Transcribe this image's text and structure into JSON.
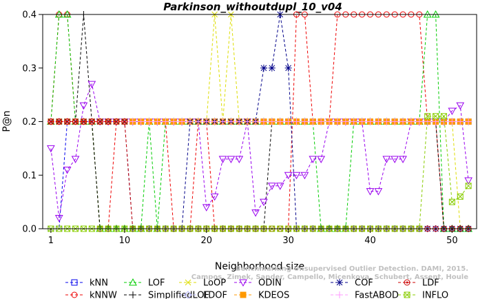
{
  "chart_data": {
    "type": "line",
    "title": "Parkinson_withoutdupl_10_v04",
    "xlabel": "Neighborhood size",
    "ylabel": "P@n",
    "xlim": [
      0,
      53
    ],
    "ylim": [
      0,
      0.4
    ],
    "xticks": [
      "1",
      "10",
      "20",
      "30",
      "40",
      "50"
    ],
    "yticks": [
      "0.0",
      "0.1",
      "0.2",
      "0.3",
      "0.4"
    ],
    "grid": false,
    "legend_position": "bottom",
    "watermark": [
      "Benchmarking Unsupervised Outlier Detection. DAMI, 2015.",
      "Campos, Zimek, Sander, Campello, Micenkova, Schubert, Assent, Houle"
    ],
    "series": [
      {
        "name": "kNN",
        "color": "#0000ee",
        "marker": "square",
        "values": [
          0,
          0,
          0.2,
          0.2,
          0.2,
          0.2,
          0.2,
          0.2,
          0.2,
          0.2,
          0.2,
          0.2,
          0.2,
          0.2,
          0.2,
          0.2,
          0.2,
          0.2,
          0.2,
          0.2,
          0.2,
          0.2,
          0.2,
          0.2,
          0.2,
          0.2,
          0.2,
          0.2,
          0.2,
          0.2,
          0.2,
          0.2,
          0.2,
          0.2,
          0.2,
          0.2,
          0.2,
          0.2,
          0.2,
          0.2,
          0.2,
          0.2,
          0.2,
          0.2,
          0.2,
          0.2,
          0.2,
          0.2,
          0.2,
          0.2,
          0.2,
          0.2
        ]
      },
      {
        "name": "kNNW",
        "color": "#ee0000",
        "marker": "circle",
        "values": [
          0.2,
          0.4,
          0.4,
          0.2,
          0.2,
          0.2,
          0,
          0,
          0.2,
          0.2,
          0.2,
          0.2,
          0.2,
          0.2,
          0.2,
          0,
          0,
          0,
          0.2,
          0.2,
          0,
          0,
          0,
          0,
          0,
          0,
          0,
          0,
          0,
          0,
          0.4,
          0.4,
          0.2,
          0.2,
          0.2,
          0.4,
          0.4,
          0.4,
          0.4,
          0.4,
          0.4,
          0.4,
          0.4,
          0.4,
          0.4,
          0.4,
          0.2,
          0.2,
          0,
          0,
          0,
          0
        ]
      },
      {
        "name": "LOF",
        "color": "#00cc00",
        "marker": "triangle-up",
        "values": [
          0.2,
          0.4,
          0.4,
          0.2,
          0.2,
          0.2,
          0,
          0,
          0,
          0,
          0,
          0,
          0.2,
          0,
          0.2,
          0.2,
          0.2,
          0.2,
          0.2,
          0.2,
          0.2,
          0.2,
          0.2,
          0.2,
          0.2,
          0.2,
          0.2,
          0.2,
          0.2,
          0.2,
          0.2,
          0.2,
          0.2,
          0,
          0,
          0,
          0,
          0.2,
          0.2,
          0.2,
          0.2,
          0.2,
          0.2,
          0.2,
          0.2,
          0.2,
          0.4,
          0.4,
          0,
          0,
          0,
          0
        ]
      },
      {
        "name": "SimplifiedLOF",
        "color": "#000000",
        "marker": "plus",
        "values": [
          0.2,
          0.2,
          0.2,
          0.2,
          0.4,
          0.2,
          0,
          0,
          0,
          0,
          0,
          0,
          0,
          0,
          0,
          0,
          0,
          0,
          0,
          0,
          0,
          0,
          0,
          0,
          0,
          0,
          0,
          0.2,
          0.2,
          0.2,
          0.2,
          0.2,
          0.2,
          0.2,
          0.2,
          0.2,
          0.2,
          0.2,
          0.2,
          0.2,
          0.2,
          0.2,
          0.2,
          0.2,
          0.2,
          0.2,
          0.2,
          0.2,
          0,
          0,
          0,
          0
        ]
      },
      {
        "name": "LoOP",
        "color": "#dddd00",
        "marker": "x",
        "values": [
          0.2,
          0.2,
          0.2,
          0.2,
          0.2,
          0.2,
          0.2,
          0.2,
          0.2,
          0.2,
          0.2,
          0.2,
          0.2,
          0.2,
          0.2,
          0.2,
          0.2,
          0.2,
          0.2,
          0.2,
          0.4,
          0.2,
          0.4,
          0.2,
          0.2,
          0.2,
          0.2,
          0.2,
          0.2,
          0.2,
          0.2,
          0.2,
          0.2,
          0.2,
          0.2,
          0.2,
          0.2,
          0.2,
          0.2,
          0.2,
          0.2,
          0.2,
          0.2,
          0.2,
          0.2,
          0.2,
          0.2,
          0.2,
          0.2,
          0.2,
          0,
          0
        ]
      },
      {
        "name": "LDOF",
        "color": "#bbbbff",
        "marker": "diamond",
        "values": [
          0.2,
          0.2,
          0.2,
          0.2,
          0.2,
          0.2,
          0.2,
          0.2,
          0.2,
          0.2,
          0.2,
          0.2,
          0.2,
          0.2,
          0.2,
          0.2,
          0.2,
          0.2,
          0.2,
          0.2,
          0.2,
          0.2,
          0.2,
          0.2,
          0.2,
          0.2,
          0.2,
          0.2,
          0.2,
          0.2,
          0.2,
          0.2,
          0.2,
          0.2,
          0.2,
          0.2,
          0.2,
          0.2,
          0.2,
          0.2,
          0.2,
          0.2,
          0.2,
          0.2,
          0.2,
          0.2,
          0.2,
          0.2,
          0.2,
          0.2,
          0.2,
          0.2
        ]
      },
      {
        "name": "ODIN",
        "color": "#9900ee",
        "marker": "triangle-down",
        "values": [
          0.15,
          0.02,
          0.11,
          0.13,
          0.23,
          0.27,
          0.2,
          0.2,
          0.2,
          0.2,
          0.2,
          0.2,
          0.2,
          0.2,
          0.2,
          0.2,
          0.2,
          0.2,
          0.2,
          0.04,
          0.06,
          0.13,
          0.13,
          0.13,
          0.2,
          0.03,
          0.05,
          0.08,
          0.08,
          0.1,
          0.1,
          0.1,
          0.13,
          0.13,
          0.2,
          0.2,
          0.2,
          0.2,
          0.2,
          0.07,
          0.07,
          0.13,
          0.13,
          0.13,
          0.2,
          0.2,
          0.2,
          0.2,
          0.2,
          0.22,
          0.23,
          0.09
        ]
      },
      {
        "name": "KDEOS",
        "color": "#ff9900",
        "marker": "square-filled",
        "values": [
          0.2,
          0.2,
          0.2,
          0.2,
          0.2,
          0.2,
          0.2,
          0.2,
          0.2,
          0.2,
          0.2,
          0.2,
          0.2,
          0.2,
          0.2,
          0.2,
          0.2,
          0.2,
          0.2,
          0.2,
          0.2,
          0.2,
          0.2,
          0.2,
          0.2,
          0.2,
          0.2,
          0.2,
          0.2,
          0.2,
          0.2,
          0.2,
          0.2,
          0.2,
          0.2,
          0.2,
          0.2,
          0.2,
          0.2,
          0.2,
          0.2,
          0.2,
          0.2,
          0.2,
          0.2,
          0.2,
          0.2,
          0.2,
          0.2,
          0.2,
          0.2,
          0.2
        ]
      },
      {
        "name": "COF",
        "color": "#000088",
        "marker": "star",
        "values": [
          0.2,
          0.2,
          0.2,
          0.2,
          0.2,
          0.2,
          0.2,
          0.2,
          0.2,
          0.2,
          0,
          0,
          0,
          0,
          0,
          0,
          0,
          0.2,
          0.2,
          0.2,
          0.2,
          0.2,
          0.2,
          0.2,
          0.2,
          0.2,
          0.3,
          0.3,
          0.4,
          0.3,
          0,
          0,
          0,
          0,
          0,
          0,
          0,
          0,
          0,
          0,
          0,
          0,
          0,
          0,
          0,
          0,
          0,
          0,
          0,
          0,
          0,
          0
        ]
      },
      {
        "name": "FastABOD",
        "color": "#ff99ff",
        "marker": "plus",
        "values": [
          0.2,
          0.2,
          0.2,
          0.2,
          0.2,
          0.2,
          0.2,
          0.2,
          0.2,
          0.2,
          0.2,
          0.2,
          0.2,
          0.2,
          0.2,
          0.2,
          0.2,
          0.2,
          0.2,
          0.2,
          0.2,
          0.2,
          0.2,
          0.2,
          0.2,
          0.2,
          0.2,
          0.2,
          0.2,
          0.2,
          0.2,
          0.2,
          0.2,
          0.2,
          0.2,
          0.2,
          0.2,
          0.2,
          0.2,
          0.2,
          0.2,
          0.2,
          0.2,
          0.2,
          0.2,
          0.2,
          0.2,
          0.2,
          0.2,
          0.2,
          0.2,
          0.2
        ]
      },
      {
        "name": "LDF",
        "color": "#cc0000",
        "marker": "circle-dot",
        "values": [
          0.2,
          0.2,
          0.2,
          0.2,
          0.2,
          0.2,
          0.2,
          0.2,
          0.2,
          0.2,
          0,
          0,
          0,
          0,
          0,
          0,
          0,
          0,
          0,
          0,
          0,
          0,
          0,
          0,
          0,
          0,
          0,
          0,
          0,
          0,
          0,
          0,
          0,
          0,
          0,
          0,
          0,
          0,
          0,
          0,
          0,
          0,
          0,
          0,
          0,
          0,
          0,
          0,
          0,
          0,
          0,
          0
        ]
      },
      {
        "name": "INFLO",
        "color": "#88cc00",
        "marker": "square-x",
        "values": [
          0,
          0,
          0,
          0,
          0,
          0,
          0,
          0,
          0,
          0,
          0,
          0,
          0,
          0,
          0,
          0,
          0,
          0,
          0,
          0,
          0,
          0,
          0,
          0,
          0,
          0,
          0,
          0,
          0,
          0,
          0,
          0,
          0,
          0,
          0,
          0,
          0,
          0,
          0,
          0,
          0,
          0,
          0,
          0,
          0,
          0,
          0.21,
          0.21,
          0.21,
          0.05,
          0.06,
          0.08
        ]
      }
    ]
  }
}
